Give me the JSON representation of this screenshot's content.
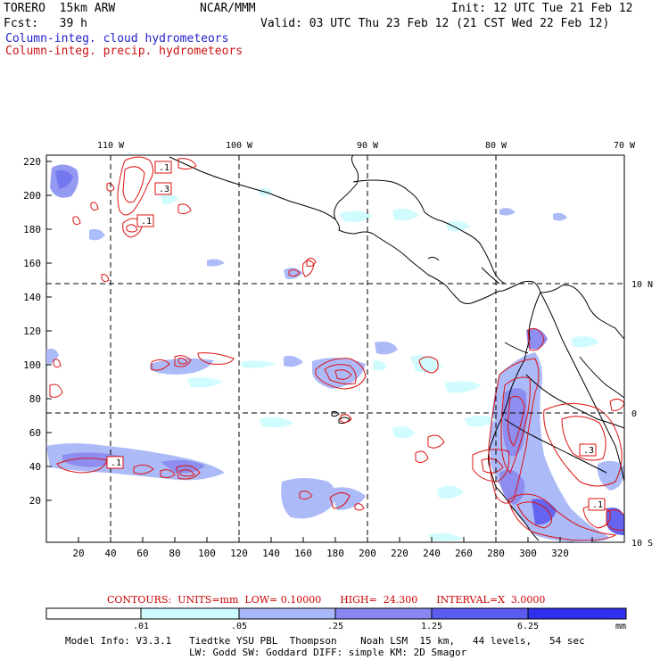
{
  "header": {
    "model": "TORERO  15km ARW",
    "center": "NCAR/MMM",
    "init": "Init: 12 UTC Tue 21 Feb 12",
    "fcst": "Fcst:   39 h",
    "valid": "Valid: 03 UTC Thu 23 Feb 12 (21 CST Wed 22 Feb 12)",
    "field1": "Column-integ. cloud hydrometeors",
    "field2": "Column-integ. precip. hydrometeors"
  },
  "map": {
    "top_lon_labels": [
      "110 W",
      "100 W",
      "90 W",
      "80 W",
      "70 W"
    ],
    "right_lat_labels": [
      "10 N",
      "0",
      "10 S"
    ],
    "y_ticks": [
      "220",
      "200",
      "180",
      "160",
      "140",
      "120",
      "100",
      "80",
      "60",
      "40",
      "20"
    ],
    "x_ticks": [
      "20",
      "40",
      "60",
      "80",
      "100",
      "120",
      "140",
      "160",
      "180",
      "200",
      "220",
      "240",
      "260",
      "280",
      "300",
      "320"
    ],
    "contour_labels": [
      ".1",
      ".3",
      ".1",
      ".1",
      ".3",
      ".1"
    ]
  },
  "legend": {
    "contours_line": "CONTOURS:  UNITS=mm  LOW= 0.10000      HIGH=  24.300      INTERVAL=X  3.0000",
    "ticks": [
      ".01",
      ".05",
      ".25",
      "1.25",
      "6.25"
    ],
    "units": "mm",
    "colors": [
      "#ffffff",
      "#cffcff",
      "#a8b8f8",
      "#8888f0",
      "#5c5cf0",
      "#3030ee"
    ]
  },
  "footer": {
    "line1": "Model Info: V3.3.1   Tiedtke YSU PBL  Thompson    Noah LSM  15 km,   44 levels,   54 sec",
    "line2": "LW: Godd SW: Goddard DIFF: simple KM: 2D Smagor"
  }
}
